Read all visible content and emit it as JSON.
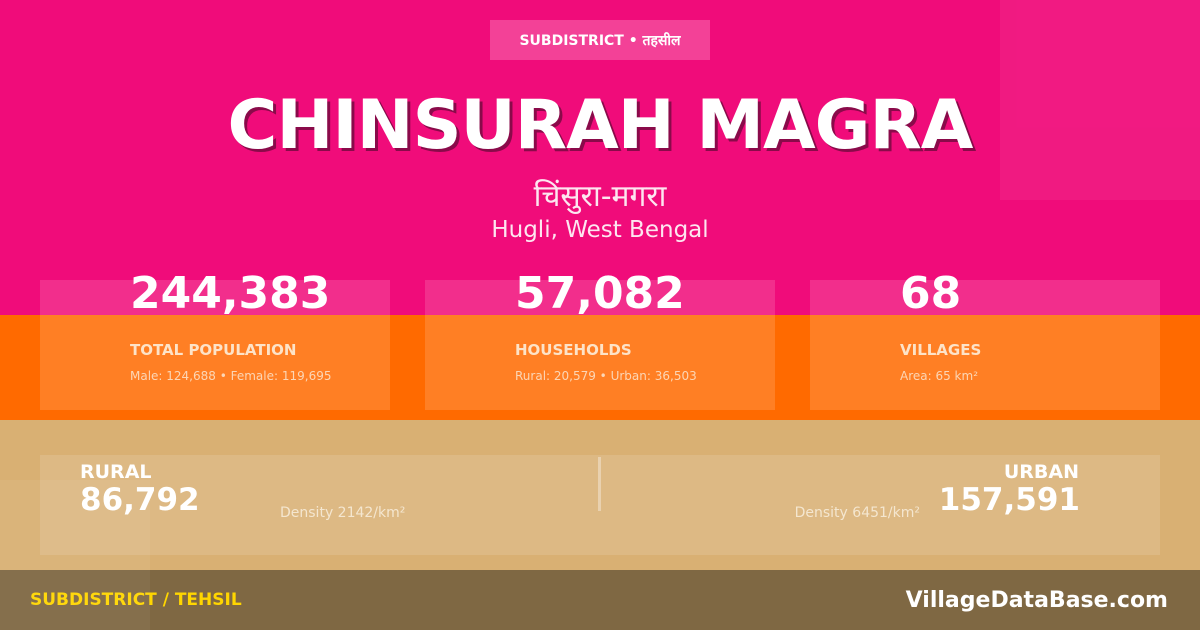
{
  "colors": {
    "pink": "#f00c7a",
    "orange": "#ff6a00",
    "tan": "#d9b073",
    "footer": "#7f6843",
    "footer_label": "#ffd600"
  },
  "header": {
    "badge": "SUBDISTRICT • तहसील",
    "title": "CHINSURAH MAGRA",
    "title_hindi": "चिंसुरा-मगरा",
    "location": "Hugli, West Bengal"
  },
  "stats": [
    {
      "value": "244,383",
      "label": "TOTAL POPULATION",
      "detail": "Male: 124,688 • Female: 119,695"
    },
    {
      "value": "57,082",
      "label": "HOUSEHOLDS",
      "detail": "Rural: 20,579 • Urban: 36,503"
    },
    {
      "value": "68",
      "label": "VILLAGES",
      "detail": "Area: 65 km²"
    }
  ],
  "split": {
    "rural": {
      "label": "RURAL",
      "value": "86,792",
      "density": "Density 2142/km²"
    },
    "urban": {
      "label": "URBAN",
      "value": "157,591",
      "density": "Density 6451/km²"
    }
  },
  "footer": {
    "category": "SUBDISTRICT / TEHSIL",
    "site": "VillageDataBase.com"
  }
}
